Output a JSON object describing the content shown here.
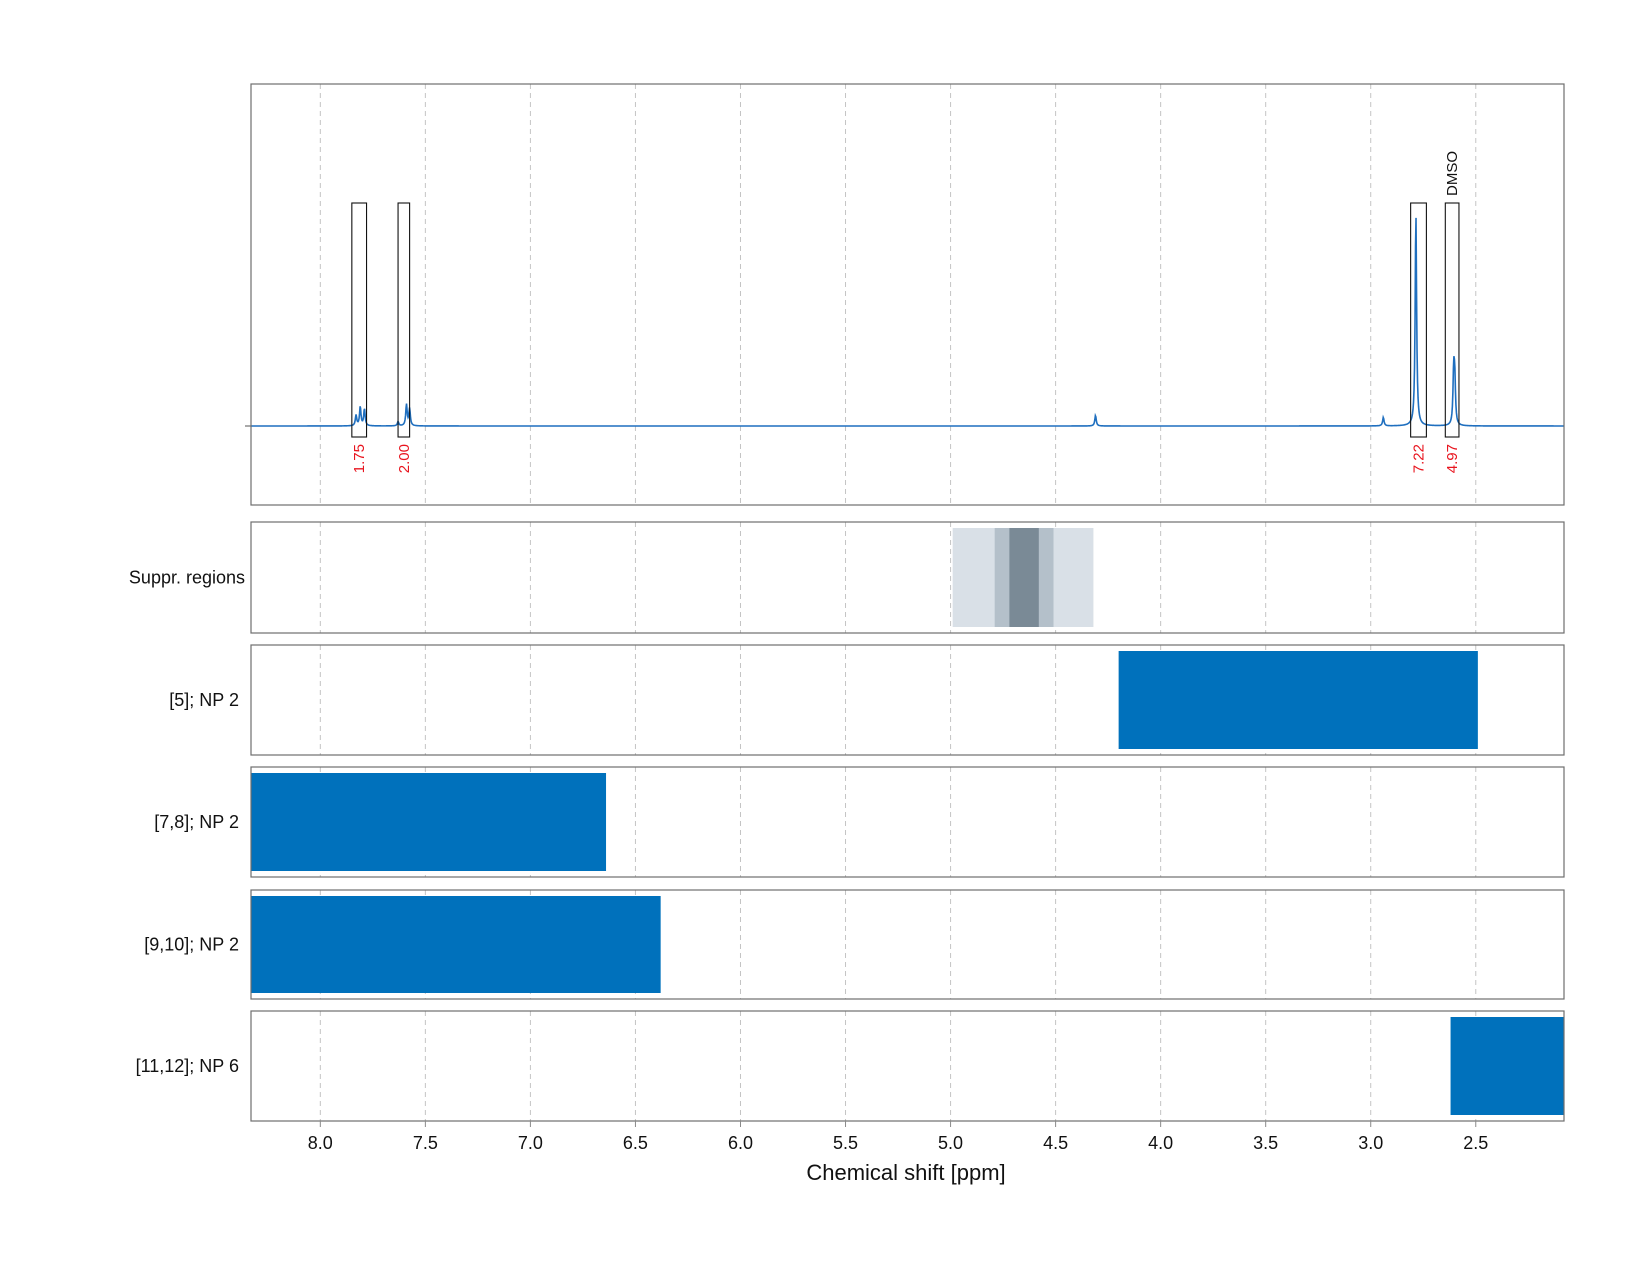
{
  "chart_data": {
    "type": "line",
    "xlabel": "Chemical shift [ppm]",
    "xlim": [
      8.33,
      2.08
    ],
    "x_ticks": [
      "8.0",
      "7.5",
      "7.0",
      "6.5",
      "6.0",
      "5.5",
      "5.0",
      "4.5",
      "4.0",
      "3.5",
      "3.0",
      "2.5"
    ],
    "grid": true,
    "spectrum": {
      "color": "#1f6fbf",
      "peaks": [
        {
          "ppm": 7.83,
          "height": 0.05
        },
        {
          "ppm": 7.81,
          "height": 0.09
        },
        {
          "ppm": 7.79,
          "height": 0.08
        },
        {
          "ppm": 7.63,
          "height": 0.02
        },
        {
          "ppm": 7.59,
          "height": 0.1
        },
        {
          "ppm": 7.575,
          "height": 0.08
        },
        {
          "ppm": 4.31,
          "height": 0.05
        },
        {
          "ppm": 2.94,
          "height": 0.04
        },
        {
          "ppm": 2.785,
          "height": 1.0
        },
        {
          "ppm": 2.605,
          "height": 0.24
        },
        {
          "ppm": 2.6,
          "height": 0.2
        }
      ]
    },
    "integration_regions": [
      {
        "from": 7.85,
        "to": 7.78,
        "label": "1.75"
      },
      {
        "from": 7.63,
        "to": 7.575,
        "label": "2.00"
      },
      {
        "from": 2.81,
        "to": 2.735,
        "label": "7.22"
      },
      {
        "from": 2.645,
        "to": 2.58,
        "label": "4.97",
        "annotation": "DMSO"
      }
    ],
    "suppression": {
      "label": "Suppr. regions",
      "layers": [
        {
          "from": 4.99,
          "to": 4.32,
          "color": "#d9e0e7"
        },
        {
          "from": 4.79,
          "to": 4.51,
          "color": "#b4c0ca"
        },
        {
          "from": 4.72,
          "to": 4.58,
          "color": "#7a8a96"
        }
      ]
    },
    "region_tracks": [
      {
        "label": "[5]; NP 2",
        "from": 4.2,
        "to": 2.49
      },
      {
        "label": "[7,8]; NP 2",
        "from": 8.33,
        "to": 6.64
      },
      {
        "label": "[9,10]; NP 2",
        "from": 8.33,
        "to": 6.38
      },
      {
        "label": "[11,12]; NP 6",
        "from": 2.62,
        "to": 2.08
      }
    ],
    "bar_color": "#0071bc"
  }
}
